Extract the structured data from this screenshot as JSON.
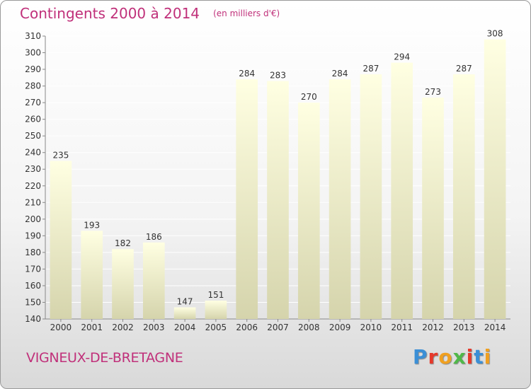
{
  "header": {
    "title": "Contingents 2000 à 2014",
    "unit_note": "(en milliers d'€)"
  },
  "footer": {
    "commune": "VIGNEUX-DE-BRETAGNE",
    "logo_text": "Proxiti"
  },
  "colors": {
    "title": "#c0307a",
    "bar_top": "#ffffe2",
    "bar_bottom": "#d5d4ac",
    "logo": [
      "#3b8fd6",
      "#e6392b",
      "#f0a020",
      "#4fb848",
      "#e6392b",
      "#3b8fd6",
      "#f0a020"
    ]
  },
  "chart_data": {
    "type": "bar",
    "title": "Contingents 2000 à 2014",
    "ylabel": "(en milliers d'€)",
    "categories": [
      "2000",
      "2001",
      "2002",
      "2003",
      "2004",
      "2005",
      "2006",
      "2007",
      "2008",
      "2009",
      "2010",
      "2011",
      "2012",
      "2013",
      "2014"
    ],
    "values": [
      235,
      193,
      182,
      186,
      147,
      151,
      284,
      283,
      270,
      284,
      287,
      294,
      273,
      287,
      308
    ],
    "ylim": [
      140,
      310
    ],
    "yticks": [
      140,
      150,
      160,
      170,
      180,
      190,
      200,
      210,
      220,
      230,
      240,
      250,
      260,
      270,
      280,
      290,
      300,
      310
    ],
    "grid": true,
    "legend": "none"
  }
}
